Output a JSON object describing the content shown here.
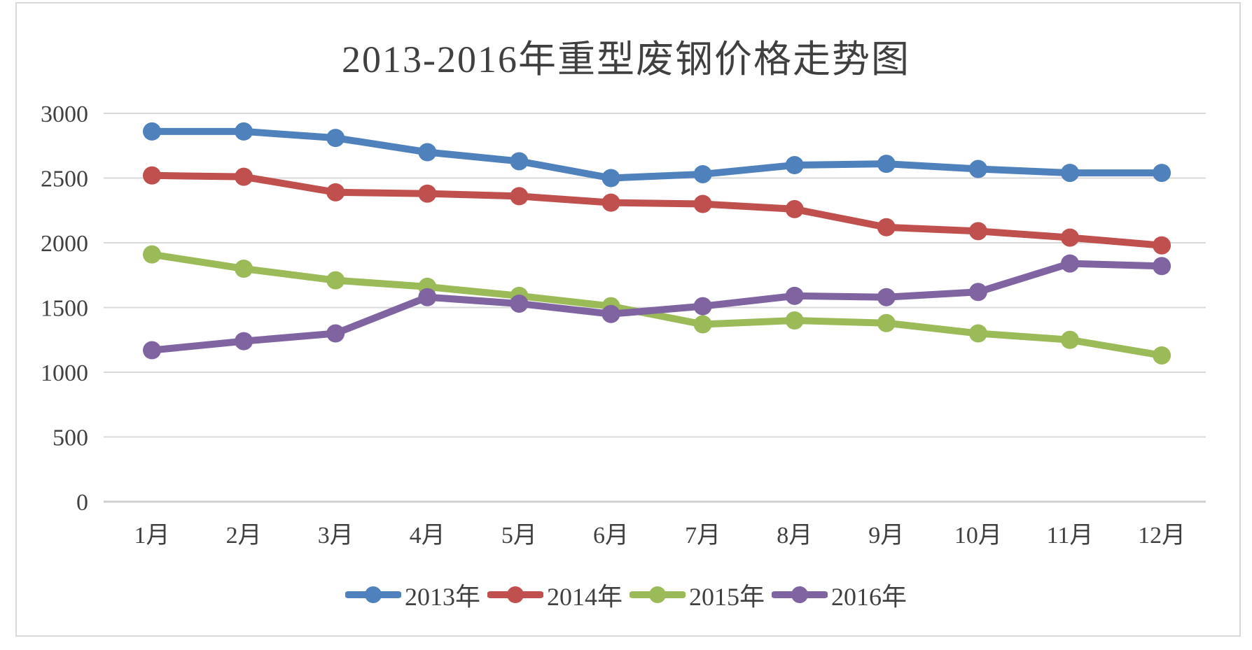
{
  "title": "2013-2016年重型废钢价格走势图",
  "colors": {
    "series_2013": "#4F81BD",
    "series_2014": "#C0504D",
    "series_2015": "#9BBB59",
    "series_2016": "#8064A2",
    "gridline": "#D9D9D9",
    "axis_line": "#CFCFCF",
    "text": "#404040",
    "frame_border": "#D9D9D9",
    "background": "#FFFFFF"
  },
  "chart_data": {
    "type": "line",
    "title": "2013-2016年重型废钢价格走势图",
    "categories": [
      "1月",
      "2月",
      "3月",
      "4月",
      "5月",
      "6月",
      "7月",
      "8月",
      "9月",
      "10月",
      "11月",
      "12月"
    ],
    "series": [
      {
        "name": "2013年",
        "color": "#4F81BD",
        "values": [
          2860,
          2860,
          2810,
          2700,
          2630,
          2500,
          2530,
          2600,
          2610,
          2570,
          2540,
          2540
        ]
      },
      {
        "name": "2014年",
        "color": "#C0504D",
        "values": [
          2520,
          2510,
          2390,
          2380,
          2360,
          2310,
          2300,
          2260,
          2120,
          2090,
          2040,
          1980
        ]
      },
      {
        "name": "2015年",
        "color": "#9BBB59",
        "values": [
          1910,
          1800,
          1710,
          1660,
          1590,
          1510,
          1370,
          1400,
          1380,
          1300,
          1250,
          1130
        ]
      },
      {
        "name": "2016年",
        "color": "#8064A2",
        "values": [
          1170,
          1240,
          1300,
          1580,
          1530,
          1450,
          1510,
          1590,
          1580,
          1620,
          1840,
          1820
        ]
      }
    ],
    "xlabel": "",
    "ylabel": "",
    "ylim": [
      0,
      3000
    ],
    "yticks": [
      0,
      500,
      1000,
      1500,
      2000,
      2500,
      3000
    ],
    "grid": true,
    "legend_position": "bottom",
    "marker": "circle"
  }
}
